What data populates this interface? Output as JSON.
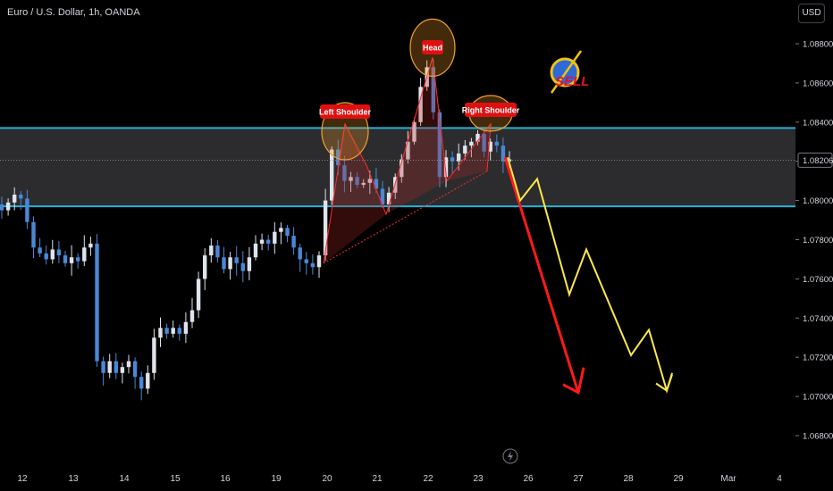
{
  "header": {
    "title": "Euro / U.S. Dollar, 1h, OANDA",
    "currency_button": "USD"
  },
  "chart_data": {
    "type": "candlestick",
    "title": "Euro / U.S. Dollar, 1h, OANDA",
    "currency": "USD",
    "ylim": [
      1.0672,
      1.0902
    ],
    "y_ticks": [
      "1.08800",
      "1.08600",
      "1.08400",
      "1.08200",
      "1.08000",
      "1.07800",
      "1.07600",
      "1.07400",
      "1.07200",
      "1.07000",
      "1.06800"
    ],
    "x_ticks": [
      "12",
      "13",
      "14",
      "15",
      "16",
      "19",
      "20",
      "21",
      "22",
      "23",
      "26",
      "27",
      "28",
      "29",
      "Mar",
      "4"
    ],
    "last_price": 1.08206,
    "last_price_label": "1.08206",
    "zone": {
      "top": 1.0837,
      "bottom": 1.0797
    },
    "closes": [
      1.0795,
      1.0799,
      1.0803,
      1.0801,
      1.0789,
      1.0776,
      1.0773,
      1.077,
      1.0775,
      1.0772,
      1.0768,
      1.0771,
      1.0769,
      1.0776,
      1.0778,
      1.0718,
      1.0712,
      1.0718,
      1.0712,
      1.0715,
      1.0718,
      1.071,
      1.0704,
      1.0712,
      1.073,
      1.0735,
      1.0732,
      1.0735,
      1.0732,
      1.0738,
      1.0744,
      1.076,
      1.0772,
      1.0777,
      1.0771,
      1.0765,
      1.0771,
      1.0768,
      1.0764,
      1.0771,
      1.0778,
      1.078,
      1.0778,
      1.0784,
      1.0786,
      1.0782,
      1.0776,
      1.077,
      1.0768,
      1.0766,
      1.0772,
      1.08,
      1.0826,
      1.0818,
      1.081,
      1.0812,
      1.0808,
      1.0809,
      1.0811,
      1.0806,
      1.0798,
      1.0804,
      1.0812,
      1.0821,
      1.083,
      1.084,
      1.0858,
      1.0868,
      1.0845,
      1.0812,
      1.0822,
      1.082,
      1.0824,
      1.0828,
      1.083,
      1.0834,
      1.0825,
      1.083,
      1.0828,
      1.082,
      1.0821
    ],
    "annotations": [
      {
        "text": "Left Shoulder",
        "price": 1.0839
      },
      {
        "text": "Head",
        "price": 1.0873
      },
      {
        "text": "Right Shoulder",
        "price": 1.0839
      }
    ],
    "projections": [
      {
        "color": "#ff1a1a",
        "points": [
          [
            1.0822,
            "23"
          ],
          [
            1.0702,
            "27"
          ]
        ]
      },
      {
        "color": "#ffe84a",
        "points": [
          [
            1.0822,
            "23"
          ],
          [
            1.08,
            "26"
          ],
          [
            1.0811,
            "26"
          ],
          [
            1.0752,
            "27"
          ],
          [
            1.0775,
            "27"
          ],
          [
            1.0721,
            "28"
          ],
          [
            1.0734,
            "28"
          ],
          [
            1.0703,
            "29"
          ],
          [
            1.0712,
            "29"
          ]
        ]
      }
    ]
  },
  "sell_logo": {
    "text": "SELL"
  }
}
